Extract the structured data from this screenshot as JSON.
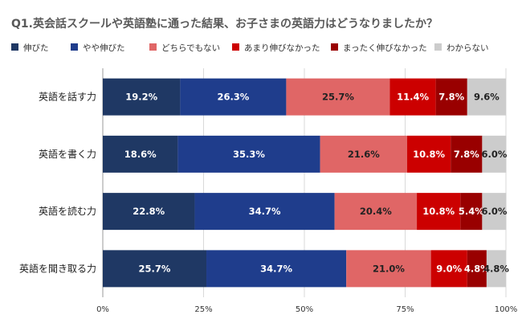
{
  "chart_data": {
    "type": "bar",
    "orientation": "horizontal",
    "stacked": true,
    "title": "Q1.英会話スクールや英語塾に通った結果、お子さまの英語力はどうなりましたか？",
    "legend_position": "top",
    "categories": [
      "英語を話す力",
      "英語を書く力",
      "英語を読む力",
      "英語を聞き取る力"
    ],
    "series": [
      {
        "name": "伸びた",
        "color": "#1f3864",
        "label_color": "#ffffff",
        "values": [
          19.2,
          18.6,
          22.8,
          25.7
        ]
      },
      {
        "name": "やや伸びた",
        "color": "#1f3d8c",
        "label_color": "#ffffff",
        "values": [
          26.3,
          35.3,
          34.7,
          34.7
        ]
      },
      {
        "name": "どちらでもない",
        "color": "#e06666",
        "label_color": "#222222",
        "values": [
          25.7,
          21.6,
          20.4,
          21.0
        ]
      },
      {
        "name": "あまり伸びなかった",
        "color": "#cc0000",
        "label_color": "#ffffff",
        "values": [
          11.4,
          10.8,
          10.8,
          9.0
        ]
      },
      {
        "name": "まったく伸びなかった",
        "color": "#990000",
        "label_color": "#ffffff",
        "values": [
          7.8,
          7.8,
          5.4,
          4.8
        ]
      },
      {
        "name": "わからない",
        "color": "#cccccc",
        "label_color": "#222222",
        "values": [
          9.6,
          6.0,
          6.0,
          4.8
        ]
      }
    ],
    "value_labels": [
      [
        "19.2%",
        "26.3%",
        "25.7%",
        "11.4%",
        "7.8%",
        "9.6%"
      ],
      [
        "18.6%",
        "35.3%",
        "21.6%",
        "10.8%",
        "7.8%",
        "6.0%"
      ],
      [
        "22.8%",
        "34.7%",
        "20.4%",
        "10.8%",
        "5.4%",
        "6.0%"
      ],
      [
        "25.7%",
        "34.7%",
        "21.0%",
        "9.0%",
        "4.8%",
        "4.8%"
      ]
    ],
    "x_ticks": [
      "0%",
      "25%",
      "50%",
      "75%",
      "100%"
    ],
    "xlim": [
      0,
      100
    ],
    "grid": true
  }
}
